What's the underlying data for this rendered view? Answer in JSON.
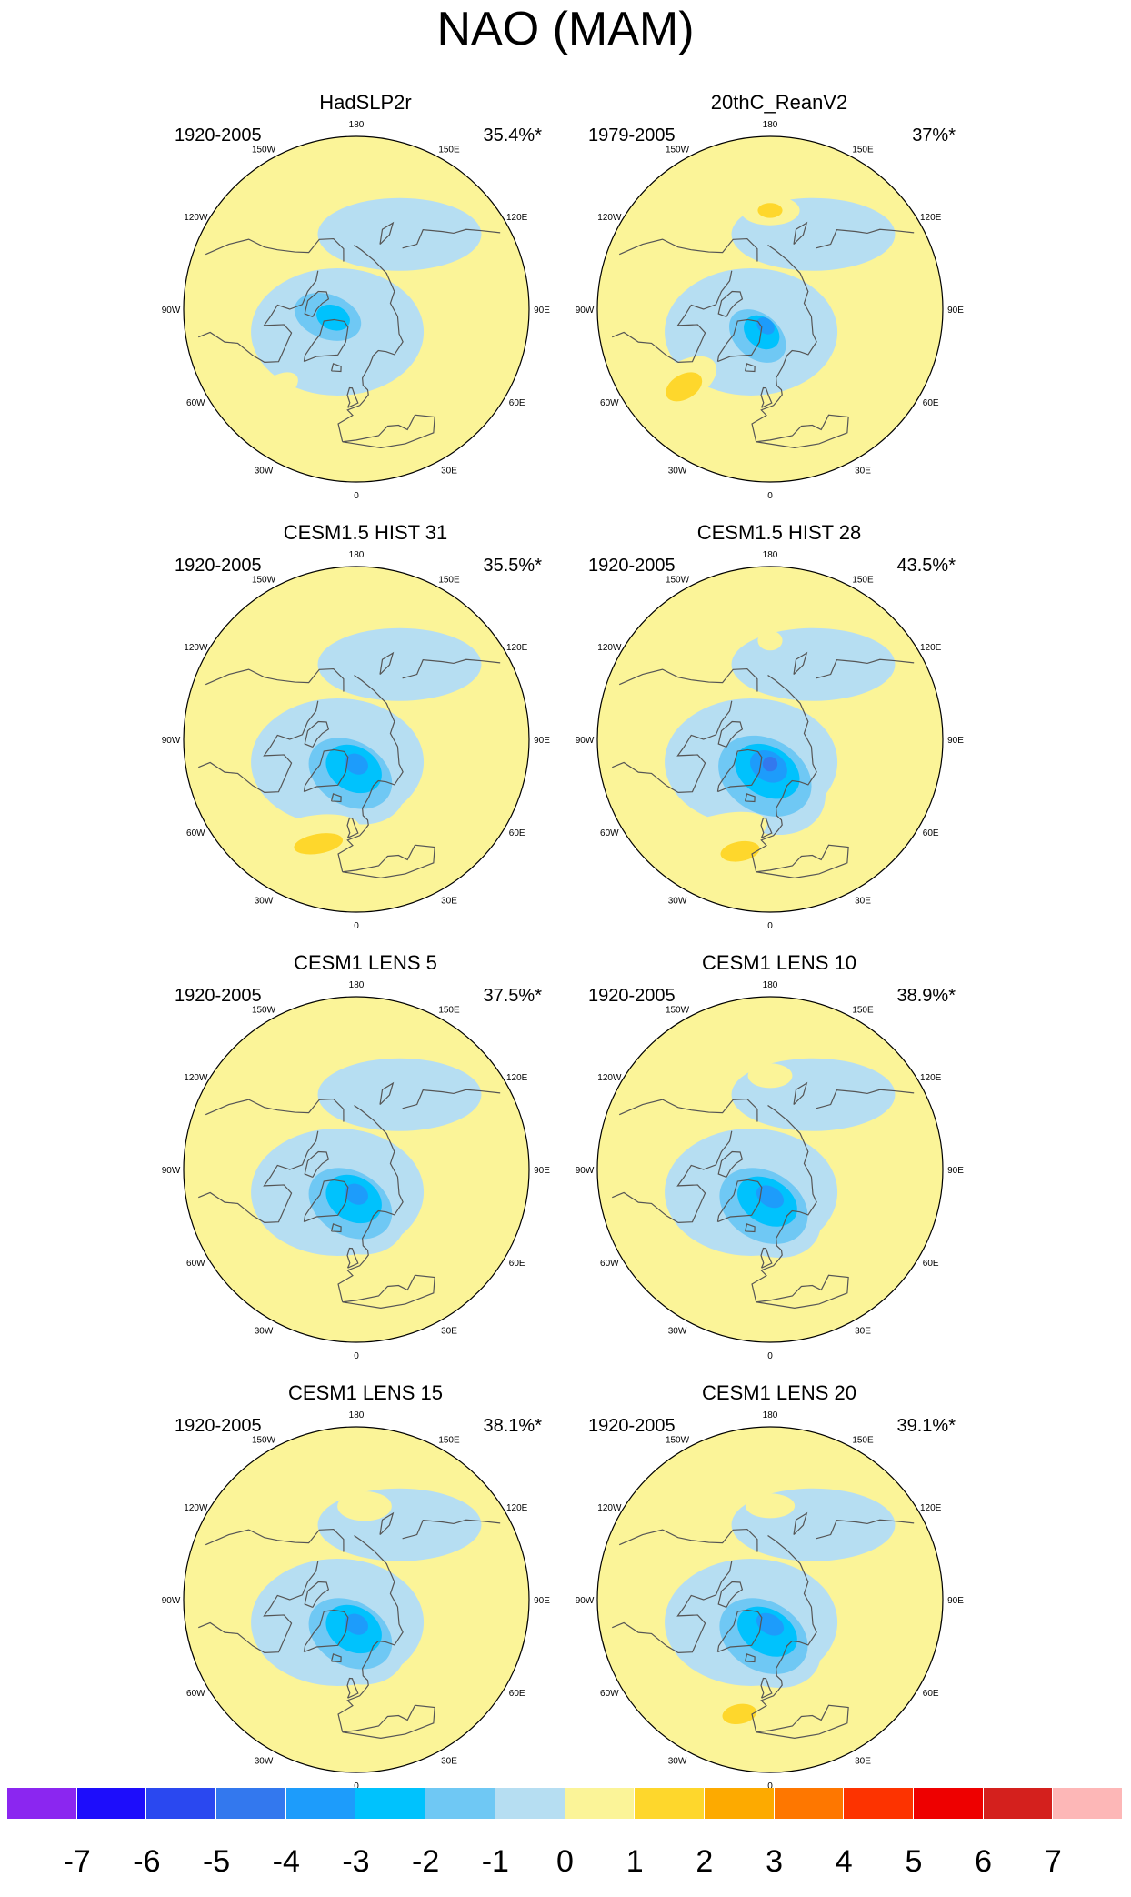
{
  "title": "NAO (MAM)",
  "colors": {
    "neutral_pos": "#fbf498",
    "neutral_neg": "#b6def2",
    "land_outline": "#555555"
  },
  "lon_labels": [
    "180",
    "150E",
    "120E",
    "90E",
    "60E",
    "30E",
    "0",
    "30W",
    "60W",
    "90W",
    "120W",
    "150W"
  ],
  "panels": [
    {
      "title": "HadSLP2r",
      "period": "1920-2005",
      "variance": "35.4%*",
      "features": [
        {
          "lat": 78,
          "lon": -75,
          "a": 20,
          "b": 14,
          "rot": 20,
          "level": -1
        },
        {
          "lat": 78,
          "lon": -75,
          "a": 14,
          "b": 9,
          "rot": 20,
          "level": -2
        },
        {
          "lat": 80,
          "lon": -70,
          "a": 7,
          "b": 5,
          "rot": 20,
          "level": -3
        },
        {
          "lat": 45,
          "lon": -45,
          "a": 9,
          "b": 5,
          "rot": -30,
          "level": 1
        }
      ]
    },
    {
      "title": "20thC_ReanV2",
      "period": "1979-2005",
      "variance": "37%*",
      "features": [
        {
          "lat": 78,
          "lon": -25,
          "a": 18,
          "b": 12,
          "rot": 40,
          "level": -1
        },
        {
          "lat": 78,
          "lon": -25,
          "a": 13,
          "b": 9,
          "rot": 40,
          "level": -2
        },
        {
          "lat": 80,
          "lon": -20,
          "a": 8,
          "b": 6,
          "rot": 40,
          "level": -3
        },
        {
          "lat": 83,
          "lon": -15,
          "a": 4,
          "b": 3,
          "rot": 40,
          "level": -4
        },
        {
          "lat": 45,
          "lon": -50,
          "a": 14,
          "b": 8,
          "rot": -30,
          "level": 1
        },
        {
          "lat": 43,
          "lon": -48,
          "a": 8,
          "b": 5,
          "rot": -30,
          "level": 2
        },
        {
          "lat": 50,
          "lon": 180,
          "a": 12,
          "b": 6,
          "rot": 0,
          "level": 1
        },
        {
          "lat": 50,
          "lon": 180,
          "a": 5,
          "b": 3,
          "rot": 0,
          "level": 2
        }
      ]
    },
    {
      "title": "CESM1.5 HIST 31",
      "period": "1920-2005",
      "variance": "35.5%*",
      "features": [
        {
          "lat": 75,
          "lon": -10,
          "a": 24,
          "b": 18,
          "rot": 30,
          "level": -1
        },
        {
          "lat": 76,
          "lon": -10,
          "a": 18,
          "b": 13,
          "rot": 30,
          "level": -2
        },
        {
          "lat": 78,
          "lon": -5,
          "a": 12,
          "b": 9,
          "rot": 30,
          "level": -3
        },
        {
          "lat": 80,
          "lon": 0,
          "a": 5,
          "b": 4,
          "rot": 30,
          "level": -4
        },
        {
          "lat": 47,
          "lon": -25,
          "a": 20,
          "b": 8,
          "rot": -10,
          "level": 1
        },
        {
          "lat": 45,
          "lon": -20,
          "a": 10,
          "b": 4,
          "rot": -10,
          "level": 2
        }
      ]
    },
    {
      "title": "CESM1.5 HIST 28",
      "period": "1920-2005",
      "variance": "43.5%*",
      "features": [
        {
          "lat": 73,
          "lon": -10,
          "a": 27,
          "b": 20,
          "rot": 30,
          "level": -1
        },
        {
          "lat": 75,
          "lon": -8,
          "a": 20,
          "b": 15,
          "rot": 30,
          "level": -2
        },
        {
          "lat": 77,
          "lon": -5,
          "a": 14,
          "b": 10,
          "rot": 30,
          "level": -3
        },
        {
          "lat": 79,
          "lon": -3,
          "a": 8,
          "b": 6,
          "rot": 30,
          "level": -4
        },
        {
          "lat": 80,
          "lon": 0,
          "a": 3,
          "b": 3,
          "rot": 30,
          "level": -5
        },
        {
          "lat": 45,
          "lon": -30,
          "a": 22,
          "b": 8,
          "rot": -15,
          "level": 1
        },
        {
          "lat": 43,
          "lon": -15,
          "a": 8,
          "b": 4,
          "rot": -10,
          "level": 2
        },
        {
          "lat": 50,
          "lon": 180,
          "a": 5,
          "b": 4,
          "rot": 0,
          "level": 1
        }
      ]
    },
    {
      "title": "CESM1 LENS 5",
      "period": "1920-2005",
      "variance": "37.5%*",
      "features": [
        {
          "lat": 75,
          "lon": -10,
          "a": 24,
          "b": 18,
          "rot": 30,
          "level": -1
        },
        {
          "lat": 76,
          "lon": -10,
          "a": 18,
          "b": 13,
          "rot": 30,
          "level": -2
        },
        {
          "lat": 78,
          "lon": -5,
          "a": 12,
          "b": 9,
          "rot": 30,
          "level": -3
        },
        {
          "lat": 80,
          "lon": 0,
          "a": 5,
          "b": 4,
          "rot": 30,
          "level": -4
        },
        {
          "lat": 43,
          "lon": -20,
          "a": 18,
          "b": 5,
          "rot": -10,
          "level": 1
        }
      ]
    },
    {
      "title": "CESM1 LENS 10",
      "period": "1920-2005",
      "variance": "38.9%*",
      "features": [
        {
          "lat": 74,
          "lon": -10,
          "a": 25,
          "b": 18,
          "rot": 30,
          "level": -1
        },
        {
          "lat": 75,
          "lon": -10,
          "a": 19,
          "b": 14,
          "rot": 30,
          "level": -2
        },
        {
          "lat": 77,
          "lon": -5,
          "a": 13,
          "b": 9,
          "rot": 30,
          "level": -3
        },
        {
          "lat": 79,
          "lon": 0,
          "a": 6,
          "b": 4,
          "rot": 30,
          "level": -4
        },
        {
          "lat": 43,
          "lon": -20,
          "a": 18,
          "b": 6,
          "rot": -10,
          "level": 1
        },
        {
          "lat": 52,
          "lon": 180,
          "a": 9,
          "b": 5,
          "rot": 0,
          "level": 1
        }
      ]
    },
    {
      "title": "CESM1 LENS 15",
      "period": "1920-2005",
      "variance": "38.1%*",
      "features": [
        {
          "lat": 75,
          "lon": -10,
          "a": 24,
          "b": 18,
          "rot": 30,
          "level": -1
        },
        {
          "lat": 76,
          "lon": -10,
          "a": 18,
          "b": 13,
          "rot": 30,
          "level": -2
        },
        {
          "lat": 78,
          "lon": -5,
          "a": 12,
          "b": 9,
          "rot": 30,
          "level": -3
        },
        {
          "lat": 80,
          "lon": 0,
          "a": 5,
          "b": 4,
          "rot": 30,
          "level": -4
        },
        {
          "lat": 43,
          "lon": -20,
          "a": 16,
          "b": 5,
          "rot": -10,
          "level": 1
        },
        {
          "lat": 52,
          "lon": 175,
          "a": 11,
          "b": 6,
          "rot": 0,
          "level": 1
        }
      ]
    },
    {
      "title": "CESM1 LENS 20",
      "period": "1920-2005",
      "variance": "39.1%*",
      "features": [
        {
          "lat": 74,
          "lon": -10,
          "a": 25,
          "b": 18,
          "rot": 30,
          "level": -1
        },
        {
          "lat": 75,
          "lon": -10,
          "a": 19,
          "b": 14,
          "rot": 30,
          "level": -2
        },
        {
          "lat": 77,
          "lon": -5,
          "a": 13,
          "b": 9,
          "rot": 30,
          "level": -3
        },
        {
          "lat": 80,
          "lon": 0,
          "a": 6,
          "b": 4,
          "rot": 30,
          "level": -4
        },
        {
          "lat": 43,
          "lon": -20,
          "a": 17,
          "b": 6,
          "rot": -10,
          "level": 1
        },
        {
          "lat": 42,
          "lon": -15,
          "a": 7,
          "b": 4,
          "rot": -10,
          "level": 2
        },
        {
          "lat": 52,
          "lon": 180,
          "a": 10,
          "b": 5,
          "rot": 0,
          "level": 1
        }
      ]
    }
  ],
  "colorbar": {
    "colors": [
      "#8b26f0",
      "#1d0dfb",
      "#2a48f0",
      "#3378ee",
      "#1d9cfb",
      "#00c2fd",
      "#6fc8f4",
      "#b6def2",
      "#fbf498",
      "#fed72c",
      "#fdaa00",
      "#fe7700",
      "#fd3300",
      "#ee0000",
      "#d4201d",
      "#fdb7b7"
    ],
    "labels": [
      "-7",
      "-6",
      "-5",
      "-4",
      "-3",
      "-2",
      "-1",
      "0",
      "1",
      "2",
      "3",
      "4",
      "5",
      "6",
      "7"
    ]
  }
}
